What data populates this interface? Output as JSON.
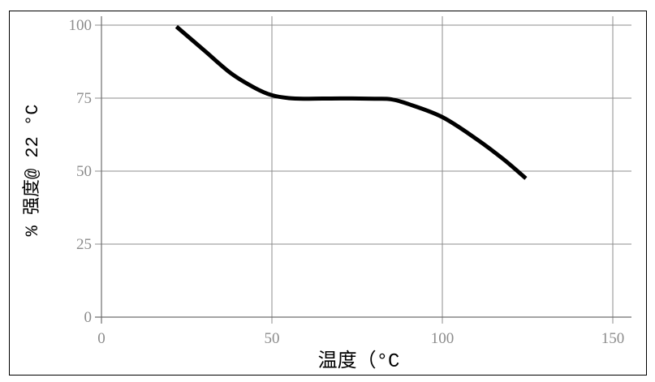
{
  "chart_data": {
    "type": "line",
    "title": "",
    "xlabel": "温度（°C",
    "ylabel": "% 强度@ 22 °C",
    "xlim": [
      0,
      150
    ],
    "ylim": [
      0,
      100
    ],
    "x_ticks": [
      "0",
      "50",
      "100",
      "150"
    ],
    "y_ticks": [
      "0",
      "25",
      "50",
      "75",
      "100"
    ],
    "grid": true,
    "legend": "none",
    "series": [
      {
        "color": "#000000",
        "x": [
          22,
          30,
          38,
          45,
          50,
          55,
          60,
          70,
          80,
          85,
          90,
          100,
          110,
          118,
          124.5
        ],
        "y": [
          99.5,
          91.5,
          83.5,
          78.5,
          76,
          75,
          74.8,
          74.9,
          74.8,
          74.6,
          73,
          68.5,
          61,
          54,
          47.5
        ]
      }
    ]
  }
}
